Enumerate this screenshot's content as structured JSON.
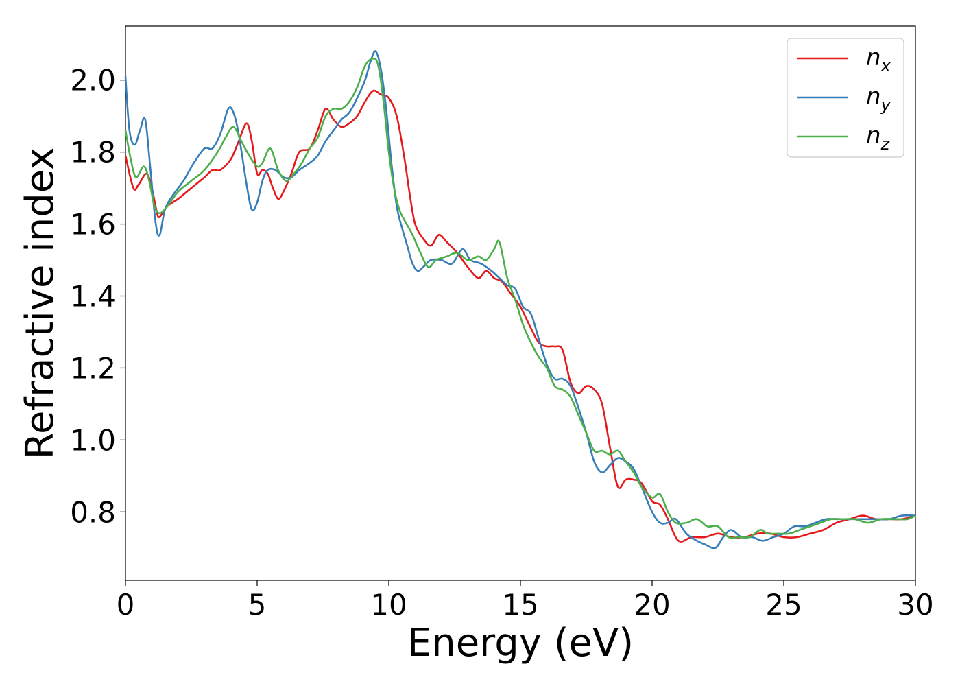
{
  "chart_data": {
    "type": "line",
    "xlabel": "Energy (eV)",
    "ylabel": "Refractive index",
    "xlim": [
      0,
      30
    ],
    "ylim": [
      0.61,
      2.15
    ],
    "xticks": [
      0,
      5,
      10,
      15,
      20,
      25,
      30
    ],
    "xtick_labels": [
      "0",
      "5",
      "10",
      "15",
      "20",
      "25",
      "30"
    ],
    "yticks": [
      0.8,
      1.0,
      1.2,
      1.4,
      1.6,
      1.8,
      2.0
    ],
    "ytick_labels": [
      "0.8",
      "1.0",
      "1.2",
      "1.4",
      "1.6",
      "1.8",
      "2.0"
    ],
    "grid": false,
    "legend_position": "top-right",
    "series": [
      {
        "name": "n",
        "subscript": "x",
        "color": "#e41a1c",
        "x": [
          0,
          0.3,
          0.5,
          0.8,
          1.0,
          1.2,
          1.3,
          1.6,
          2.0,
          2.5,
          3.0,
          3.3,
          3.6,
          4.0,
          4.3,
          4.6,
          4.8,
          5.0,
          5.2,
          5.4,
          5.6,
          5.8,
          6.0,
          6.3,
          6.6,
          7.0,
          7.3,
          7.6,
          7.9,
          8.2,
          8.5,
          8.8,
          9.1,
          9.4,
          9.7,
          10.0,
          10.3,
          10.6,
          10.8,
          11.0,
          11.3,
          11.6,
          11.9,
          12.2,
          12.6,
          13.0,
          13.4,
          13.7,
          14.0,
          14.3,
          14.6,
          15.0,
          15.4,
          15.7,
          16.0,
          16.3,
          16.6,
          16.9,
          17.2,
          17.5,
          17.8,
          18.1,
          18.4,
          18.7,
          19.0,
          19.3,
          19.6,
          20.0,
          20.3,
          20.6,
          21.0,
          21.5,
          22.0,
          22.5,
          23.0,
          23.5,
          24.0,
          24.5,
          25.0,
          25.5,
          26.0,
          26.5,
          27.0,
          27.5,
          28.0,
          28.5,
          29.0,
          29.5,
          30.0
        ],
        "y": [
          1.79,
          1.7,
          1.71,
          1.74,
          1.7,
          1.63,
          1.62,
          1.65,
          1.67,
          1.7,
          1.73,
          1.75,
          1.75,
          1.78,
          1.83,
          1.88,
          1.83,
          1.74,
          1.75,
          1.74,
          1.7,
          1.67,
          1.69,
          1.74,
          1.8,
          1.81,
          1.86,
          1.92,
          1.89,
          1.87,
          1.88,
          1.9,
          1.94,
          1.97,
          1.96,
          1.95,
          1.9,
          1.78,
          1.68,
          1.6,
          1.56,
          1.54,
          1.57,
          1.55,
          1.52,
          1.48,
          1.45,
          1.47,
          1.45,
          1.44,
          1.41,
          1.37,
          1.31,
          1.27,
          1.26,
          1.26,
          1.25,
          1.16,
          1.13,
          1.15,
          1.14,
          1.1,
          0.98,
          0.87,
          0.89,
          0.89,
          0.88,
          0.83,
          0.82,
          0.78,
          0.72,
          0.73,
          0.73,
          0.74,
          0.73,
          0.73,
          0.74,
          0.74,
          0.73,
          0.73,
          0.74,
          0.75,
          0.77,
          0.78,
          0.79,
          0.78,
          0.78,
          0.78,
          0.79
        ]
      },
      {
        "name": "n",
        "subscript": "y",
        "color": "#377eb8",
        "x": [
          0,
          0.15,
          0.35,
          0.55,
          0.75,
          0.95,
          1.15,
          1.3,
          1.5,
          1.8,
          2.2,
          2.6,
          3.0,
          3.3,
          3.6,
          3.9,
          4.1,
          4.3,
          4.6,
          4.8,
          5.0,
          5.2,
          5.4,
          5.7,
          6.0,
          6.3,
          6.6,
          7.0,
          7.3,
          7.6,
          7.9,
          8.2,
          8.5,
          8.8,
          9.1,
          9.3,
          9.5,
          9.7,
          9.9,
          10.1,
          10.3,
          10.5,
          10.7,
          10.9,
          11.1,
          11.3,
          11.6,
          12.0,
          12.4,
          12.8,
          13.1,
          13.5,
          13.9,
          14.2,
          14.5,
          14.8,
          15.1,
          15.4,
          15.7,
          16.0,
          16.3,
          16.6,
          16.9,
          17.2,
          17.5,
          17.8,
          18.1,
          18.4,
          18.7,
          19.0,
          19.3,
          19.6,
          20.0,
          20.3,
          20.6,
          20.9,
          21.3,
          21.7,
          22.0,
          22.4,
          22.7,
          23.0,
          23.4,
          23.8,
          24.2,
          24.6,
          25.0,
          25.4,
          25.8,
          26.2,
          26.6,
          27.0,
          27.5,
          28.0,
          28.5,
          29.0,
          29.5,
          30.0
        ],
        "y": [
          2.01,
          1.86,
          1.82,
          1.86,
          1.89,
          1.75,
          1.6,
          1.57,
          1.64,
          1.68,
          1.72,
          1.77,
          1.81,
          1.81,
          1.85,
          1.92,
          1.91,
          1.85,
          1.71,
          1.64,
          1.66,
          1.72,
          1.75,
          1.75,
          1.73,
          1.73,
          1.75,
          1.77,
          1.79,
          1.83,
          1.86,
          1.89,
          1.91,
          1.95,
          2.0,
          2.05,
          2.08,
          2.03,
          1.92,
          1.77,
          1.65,
          1.59,
          1.54,
          1.49,
          1.47,
          1.48,
          1.5,
          1.5,
          1.49,
          1.53,
          1.5,
          1.49,
          1.47,
          1.45,
          1.43,
          1.42,
          1.37,
          1.35,
          1.28,
          1.21,
          1.17,
          1.17,
          1.15,
          1.09,
          1.02,
          0.94,
          0.91,
          0.93,
          0.95,
          0.94,
          0.92,
          0.87,
          0.8,
          0.77,
          0.77,
          0.78,
          0.74,
          0.72,
          0.71,
          0.7,
          0.73,
          0.75,
          0.73,
          0.73,
          0.72,
          0.73,
          0.74,
          0.76,
          0.76,
          0.77,
          0.78,
          0.78,
          0.78,
          0.78,
          0.78,
          0.78,
          0.79,
          0.79
        ]
      },
      {
        "name": "n",
        "subscript": "z",
        "color": "#4daf4a",
        "x": [
          0,
          0.2,
          0.4,
          0.7,
          0.9,
          1.1,
          1.3,
          1.6,
          2.0,
          2.5,
          3.0,
          3.5,
          3.8,
          4.1,
          4.4,
          4.7,
          5.0,
          5.2,
          5.5,
          5.8,
          6.1,
          6.4,
          6.7,
          7.0,
          7.3,
          7.6,
          7.9,
          8.2,
          8.5,
          8.8,
          9.1,
          9.4,
          9.6,
          9.8,
          10.0,
          10.2,
          10.4,
          10.6,
          10.9,
          11.2,
          11.5,
          11.8,
          12.2,
          12.6,
          13.0,
          13.4,
          13.7,
          14.0,
          14.2,
          14.5,
          14.8,
          15.1,
          15.4,
          15.7,
          16.0,
          16.3,
          16.6,
          16.9,
          17.2,
          17.5,
          17.8,
          18.1,
          18.4,
          18.7,
          19.0,
          19.3,
          19.6,
          20.0,
          20.3,
          20.6,
          20.9,
          21.3,
          21.7,
          22.1,
          22.5,
          22.9,
          23.3,
          23.7,
          24.1,
          24.4,
          24.8,
          25.2,
          25.6,
          26.0,
          26.4,
          26.8,
          27.2,
          27.7,
          28.2,
          28.7,
          29.2,
          29.7,
          30.0
        ],
        "y": [
          1.86,
          1.78,
          1.73,
          1.76,
          1.72,
          1.65,
          1.63,
          1.65,
          1.69,
          1.72,
          1.75,
          1.8,
          1.84,
          1.87,
          1.83,
          1.79,
          1.76,
          1.77,
          1.81,
          1.75,
          1.72,
          1.74,
          1.77,
          1.81,
          1.84,
          1.9,
          1.92,
          1.92,
          1.94,
          1.98,
          2.04,
          2.06,
          2.04,
          1.94,
          1.8,
          1.7,
          1.64,
          1.61,
          1.57,
          1.52,
          1.48,
          1.5,
          1.51,
          1.52,
          1.5,
          1.51,
          1.5,
          1.53,
          1.55,
          1.45,
          1.39,
          1.32,
          1.27,
          1.23,
          1.2,
          1.15,
          1.14,
          1.12,
          1.07,
          1.02,
          0.97,
          0.97,
          0.96,
          0.97,
          0.94,
          0.91,
          0.87,
          0.84,
          0.85,
          0.8,
          0.77,
          0.77,
          0.78,
          0.76,
          0.76,
          0.73,
          0.73,
          0.73,
          0.75,
          0.74,
          0.74,
          0.74,
          0.75,
          0.76,
          0.77,
          0.78,
          0.78,
          0.78,
          0.77,
          0.78,
          0.78,
          0.78,
          0.79
        ]
      }
    ]
  }
}
